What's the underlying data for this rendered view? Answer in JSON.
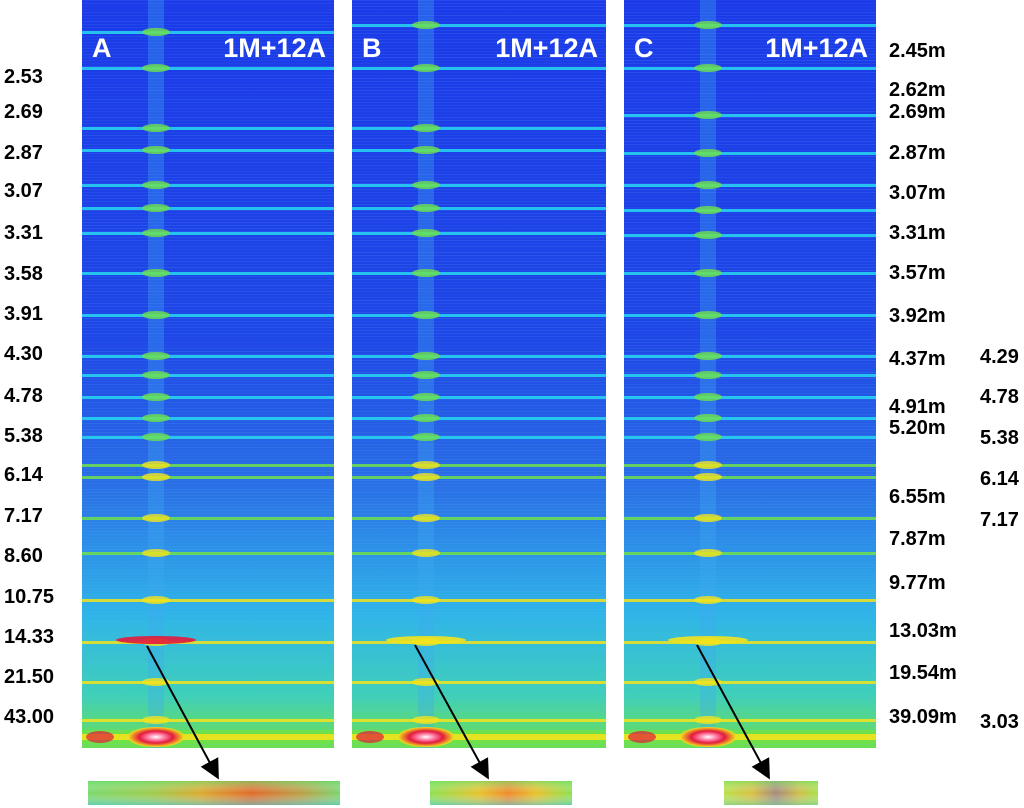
{
  "panels": [
    {
      "letter": "A",
      "tag": "1M+12A"
    },
    {
      "letter": "B",
      "tag": "1M+12A"
    },
    {
      "letter": "C",
      "tag": "1M+12A"
    }
  ],
  "left_labels": [
    "2.53",
    "2.69",
    "2.87",
    "3.07",
    "3.31",
    "3.58",
    "3.91",
    "4.30",
    "4.78",
    "5.38",
    "6.14",
    "7.17",
    "8.60",
    "10.75",
    "14.33",
    "21.50",
    "43.00"
  ],
  "middle_labels": [
    "2.45m",
    "2.62m",
    "2.69m",
    "2.87m",
    "3.07m",
    "3.31m",
    "3.57m",
    "3.92m",
    "4.37m",
    "4.91m",
    "5.20m",
    "6.55m",
    "7.87m",
    "9.77m",
    "13.03m",
    "19.54m",
    "39.09m"
  ],
  "right_labels": [
    "4.29",
    "4.78",
    "5.38",
    "6.14",
    "7.17",
    "3.03"
  ],
  "colors": {
    "background": "#1f3fe6",
    "band": "#27d8f0",
    "green": "#6fe14a",
    "yellow": "#f2e31c",
    "red": "#e3193c",
    "pink": "#ff7fa8",
    "text": "#000000",
    "panel_text": "#ffffff"
  }
}
